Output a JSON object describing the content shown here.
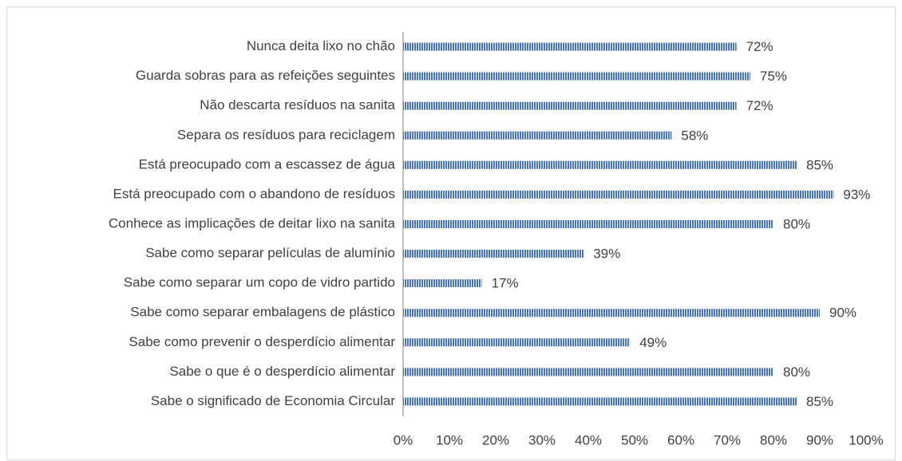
{
  "chart_data": {
    "type": "barh",
    "categories": [
      "Nunca deita lixo no chão",
      "Guarda sobras para as refeições seguintes",
      "Não descarta resíduos na sanita",
      "Separa os resíduos para reciclagem",
      "Está preocupado com a escassez de água",
      "Está preocupado com o abandono de resíduos",
      "Conhece as implicações de deitar lixo na sanita",
      "Sabe como separar películas de alumínio",
      "Sabe como separar um copo de vidro partido",
      "Sabe como separar embalagens de plástico",
      "Sabe como prevenir o desperdício alimentar",
      "Sabe o que é o desperdício alimentar",
      "Sabe o significado de Economia Circular"
    ],
    "values": [
      72,
      75,
      72,
      58,
      85,
      93,
      80,
      39,
      17,
      90,
      49,
      80,
      85
    ],
    "value_labels": [
      "72%",
      "75%",
      "72%",
      "58%",
      "85%",
      "93%",
      "80%",
      "39%",
      "17%",
      "90%",
      "49%",
      "80%",
      "85%"
    ],
    "color": "#4472c4",
    "xlim": [
      0,
      100
    ],
    "xticks": [
      {
        "value": 0,
        "label": "0%"
      },
      {
        "value": 10,
        "label": "10%"
      },
      {
        "value": 20,
        "label": "20%"
      },
      {
        "value": 30,
        "label": "30%"
      },
      {
        "value": 40,
        "label": "40%"
      },
      {
        "value": 50,
        "label": "50%"
      },
      {
        "value": 60,
        "label": "60%"
      },
      {
        "value": 70,
        "label": "70%"
      },
      {
        "value": 80,
        "label": "80%"
      },
      {
        "value": 90,
        "label": "90%"
      },
      {
        "value": 100,
        "label": "100%"
      }
    ],
    "grid": false
  }
}
